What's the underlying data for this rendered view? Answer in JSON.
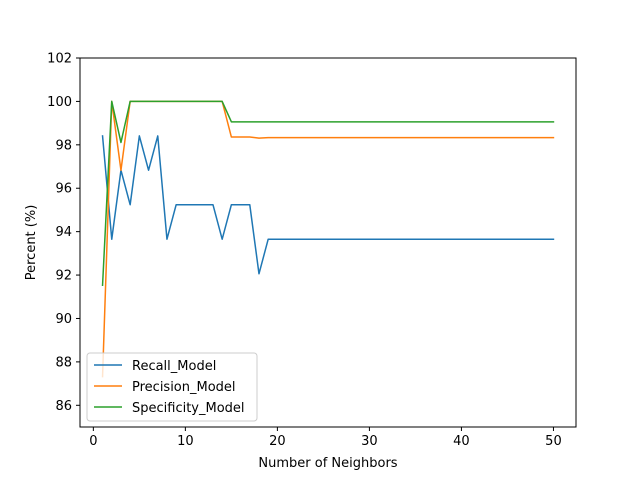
{
  "chart_data": {
    "type": "line",
    "title": "",
    "xlabel": "Number of Neighbors",
    "ylabel": "Percent (%)",
    "xlim": [
      -1.45,
      52.45
    ],
    "ylim": [
      85.0,
      102.0
    ],
    "xticks": [
      0,
      10,
      20,
      30,
      40,
      50
    ],
    "yticks": [
      86,
      88,
      90,
      92,
      94,
      96,
      98,
      100,
      102
    ],
    "grid": false,
    "legend_position": "lower-left",
    "x": [
      1,
      2,
      3,
      4,
      5,
      6,
      7,
      8,
      9,
      10,
      11,
      12,
      13,
      14,
      15,
      16,
      17,
      18,
      19,
      20,
      21,
      22,
      23,
      24,
      25,
      26,
      27,
      28,
      29,
      30,
      31,
      32,
      33,
      34,
      35,
      36,
      37,
      38,
      39,
      40,
      41,
      42,
      43,
      44,
      45,
      46,
      47,
      48,
      49,
      50
    ],
    "series": [
      {
        "name": "Recall_Model",
        "color": "#1f77b4",
        "values": [
          98.41,
          93.65,
          96.83,
          95.24,
          98.41,
          96.83,
          98.41,
          93.65,
          95.24,
          95.24,
          95.24,
          95.24,
          95.24,
          93.65,
          95.24,
          95.24,
          95.24,
          92.06,
          93.65,
          93.65,
          93.65,
          93.65,
          93.65,
          93.65,
          93.65,
          93.65,
          93.65,
          93.65,
          93.65,
          93.65,
          93.65,
          93.65,
          93.65,
          93.65,
          93.65,
          93.65,
          93.65,
          93.65,
          93.65,
          93.65,
          93.65,
          93.65,
          93.65,
          93.65,
          93.65,
          93.65,
          93.65,
          93.65,
          93.65,
          93.65
        ]
      },
      {
        "name": "Precision_Model",
        "color": "#ff7f0e",
        "values": [
          87.32,
          100.0,
          96.83,
          100.0,
          100.0,
          100.0,
          100.0,
          100.0,
          100.0,
          100.0,
          100.0,
          100.0,
          100.0,
          100.0,
          98.36,
          98.36,
          98.36,
          98.31,
          98.33,
          98.33,
          98.33,
          98.33,
          98.33,
          98.33,
          98.33,
          98.33,
          98.33,
          98.33,
          98.33,
          98.33,
          98.33,
          98.33,
          98.33,
          98.33,
          98.33,
          98.33,
          98.33,
          98.33,
          98.33,
          98.33,
          98.33,
          98.33,
          98.33,
          98.33,
          98.33,
          98.33,
          98.33,
          98.33,
          98.33,
          98.33
        ]
      },
      {
        "name": "Specificity_Model",
        "color": "#2ca02c",
        "values": [
          91.53,
          100.0,
          98.11,
          100.0,
          100.0,
          100.0,
          100.0,
          100.0,
          100.0,
          100.0,
          100.0,
          100.0,
          100.0,
          100.0,
          99.06,
          99.06,
          99.06,
          99.06,
          99.06,
          99.06,
          99.06,
          99.06,
          99.06,
          99.06,
          99.06,
          99.06,
          99.06,
          99.06,
          99.06,
          99.06,
          99.06,
          99.06,
          99.06,
          99.06,
          99.06,
          99.06,
          99.06,
          99.06,
          99.06,
          99.06,
          99.06,
          99.06,
          99.06,
          99.06,
          99.06,
          99.06,
          99.06,
          99.06,
          99.06,
          99.06
        ]
      }
    ]
  }
}
